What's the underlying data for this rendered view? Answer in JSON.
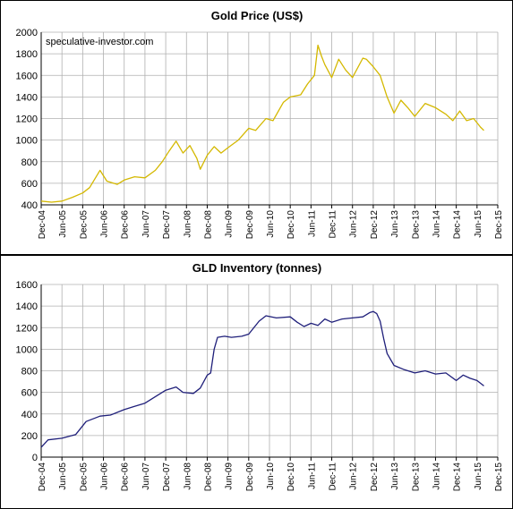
{
  "chart_data": [
    {
      "type": "line",
      "title": "Gold  Price (US$)",
      "annotation": "speculative-investor.com",
      "xlabel": "",
      "ylabel": "",
      "ylim": [
        400,
        2000
      ],
      "yticks": [
        400,
        600,
        800,
        1000,
        1200,
        1400,
        1600,
        1800,
        2000
      ],
      "xticks": [
        "Dec-04",
        "Jun-05",
        "Dec-05",
        "Jun-06",
        "Dec-06",
        "Jun-07",
        "Dec-07",
        "Jun-08",
        "Dec-08",
        "Jun-09",
        "Dec-09",
        "Jun-10",
        "Dec-10",
        "Jun-11",
        "Dec-11",
        "Jun-12",
        "Dec-12",
        "Jun-13",
        "Dec-13",
        "Jun-14",
        "Dec-14",
        "Jun-15",
        "Dec-15"
      ],
      "grid": true,
      "color": "#d4b800",
      "series": [
        {
          "x": [
            "2004-12",
            "2005-03",
            "2005-06",
            "2005-09",
            "2005-12",
            "2006-02",
            "2006-05",
            "2006-07",
            "2006-10",
            "2006-12",
            "2007-03",
            "2007-06",
            "2007-09",
            "2007-11",
            "2008-01",
            "2008-03",
            "2008-05",
            "2008-07",
            "2008-09",
            "2008-10",
            "2008-12",
            "2009-02",
            "2009-04",
            "2009-06",
            "2009-09",
            "2009-12",
            "2010-02",
            "2010-05",
            "2010-07",
            "2010-10",
            "2010-12",
            "2011-03",
            "2011-05",
            "2011-07",
            "2011-08",
            "2011-09",
            "2011-10",
            "2011-12",
            "2012-02",
            "2012-04",
            "2012-06",
            "2012-09",
            "2012-10",
            "2012-12",
            "2013-02",
            "2013-04",
            "2013-06",
            "2013-08",
            "2013-10",
            "2013-12",
            "2014-03",
            "2014-06",
            "2014-09",
            "2014-11",
            "2015-01",
            "2015-03",
            "2015-05",
            "2015-07",
            "2015-08"
          ],
          "values": [
            435,
            425,
            435,
            470,
            510,
            560,
            720,
            620,
            590,
            630,
            660,
            650,
            720,
            800,
            900,
            990,
            880,
            950,
            830,
            730,
            860,
            940,
            880,
            930,
            1000,
            1110,
            1090,
            1200,
            1180,
            1350,
            1400,
            1420,
            1520,
            1600,
            1880,
            1780,
            1700,
            1580,
            1750,
            1650,
            1580,
            1760,
            1750,
            1680,
            1600,
            1400,
            1250,
            1370,
            1300,
            1220,
            1340,
            1300,
            1240,
            1180,
            1270,
            1180,
            1200,
            1120,
            1090
          ]
        }
      ]
    },
    {
      "type": "line",
      "title": "GLD  Inventory  (tonnes)",
      "xlabel": "",
      "ylabel": "",
      "ylim": [
        0,
        1600
      ],
      "yticks": [
        0,
        200,
        400,
        600,
        800,
        1000,
        1200,
        1400,
        1600
      ],
      "xticks": [
        "Dec-04",
        "Jun-05",
        "Dec-05",
        "Jun-06",
        "Dec-06",
        "Jun-07",
        "Dec-07",
        "Jun-08",
        "Dec-08",
        "Jun-09",
        "Dec-09",
        "Jun-10",
        "Dec-10",
        "Jun-11",
        "Dec-11",
        "Jun-12",
        "Dec-12",
        "Jun-13",
        "Dec-13",
        "Jun-14",
        "Dec-14",
        "Jun-15",
        "Dec-15"
      ],
      "grid": true,
      "color": "#1f1f7a",
      "series": [
        {
          "x": [
            "2004-12",
            "2005-02",
            "2005-06",
            "2005-10",
            "2006-01",
            "2006-05",
            "2006-08",
            "2006-12",
            "2007-03",
            "2007-06",
            "2007-09",
            "2007-12",
            "2008-03",
            "2008-05",
            "2008-08",
            "2008-10",
            "2008-12",
            "2009-01",
            "2009-02",
            "2009-03",
            "2009-05",
            "2009-07",
            "2009-10",
            "2009-12",
            "2010-03",
            "2010-05",
            "2010-08",
            "2010-12",
            "2011-02",
            "2011-04",
            "2011-06",
            "2011-08",
            "2011-10",
            "2011-12",
            "2012-03",
            "2012-06",
            "2012-09",
            "2012-11",
            "2012-12",
            "2013-01",
            "2013-02",
            "2013-03",
            "2013-04",
            "2013-06",
            "2013-09",
            "2013-12",
            "2014-03",
            "2014-06",
            "2014-09",
            "2014-12",
            "2015-02",
            "2015-04",
            "2015-06",
            "2015-08"
          ],
          "values": [
            90,
            160,
            175,
            210,
            330,
            380,
            390,
            440,
            470,
            500,
            560,
            620,
            650,
            600,
            590,
            640,
            760,
            780,
            1000,
            1110,
            1120,
            1110,
            1120,
            1140,
            1260,
            1310,
            1290,
            1300,
            1250,
            1210,
            1240,
            1220,
            1280,
            1250,
            1280,
            1290,
            1300,
            1340,
            1350,
            1330,
            1260,
            1100,
            960,
            850,
            810,
            780,
            800,
            770,
            780,
            710,
            760,
            730,
            710,
            660
          ]
        }
      ]
    }
  ]
}
